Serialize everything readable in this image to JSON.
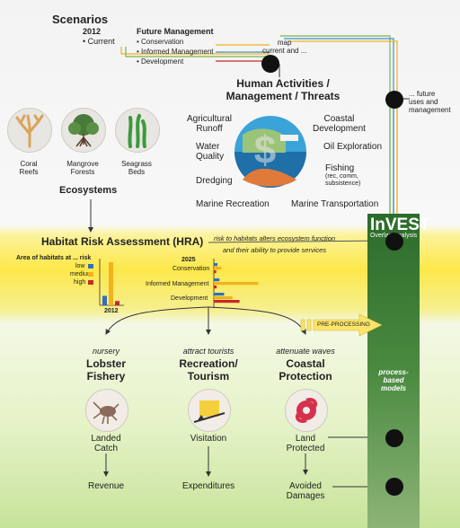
{
  "scenarios": {
    "title": "Scenarios",
    "year": "2012",
    "current": "• Current",
    "future_title": "Future Management",
    "future_items": [
      "• Conservation",
      "• Informed Management",
      "• Development"
    ]
  },
  "map_label": "map\ncurrent and ...",
  "future_uses": "... future\nuses and\nmanagement",
  "human_title": "Human Activities /\nManagement / Threats",
  "activities": {
    "ag_runoff": "Agricultural\nRunoff",
    "coastal_dev": "Coastal\nDevelopment",
    "water_quality": "Water\nQuality",
    "oil": "Oil Exploration",
    "dredging": "Dredging",
    "fishing": "Fishing",
    "fishing_sub": "(rec, comm,\nsubsistence)",
    "marine_rec": "Marine Recreation",
    "marine_transport": "Marine Transportation"
  },
  "ecosystems": {
    "title": "Ecosystems",
    "items": [
      "Coral\nReefs",
      "Mangrove\nForests",
      "Seagrass\nBeds"
    ]
  },
  "invest": {
    "title": "InVEST",
    "subtitle": "Overlap Analysis",
    "process": "process-\nbased\nmodels"
  },
  "hra": {
    "title": "Habitat Risk Assessment (HRA)",
    "arrow_text_1": "risk to habitats alters ecosystem function",
    "arrow_text_2": "and their ability to provide services",
    "area_label": "Area of habitats at ... risk",
    "legend": [
      "low",
      "medium",
      "high"
    ],
    "year_2012": "2012",
    "year_2025": "2025",
    "scenario_labels": [
      "Conservation",
      "Informed Management",
      "Development"
    ],
    "preprocessing": "PRE-PROCESSING"
  },
  "chart_data": [
    {
      "type": "bar",
      "title": "2012",
      "categories": [
        "2012"
      ],
      "series": [
        {
          "name": "low",
          "values": [
            0.22
          ]
        },
        {
          "name": "medium",
          "values": [
            1.0
          ]
        },
        {
          "name": "high",
          "values": [
            0.1
          ]
        }
      ]
    },
    {
      "type": "bar",
      "title": "2025",
      "categories": [
        "Conservation",
        "Informed Management",
        "Development"
      ],
      "series": [
        {
          "name": "low",
          "values": [
            0.08,
            0.12,
            0.22
          ]
        },
        {
          "name": "medium",
          "values": [
            0.16,
            0.95,
            0.4
          ]
        },
        {
          "name": "high",
          "values": [
            0.05,
            0.06,
            0.55
          ]
        }
      ]
    }
  ],
  "colors": {
    "low": "#2f6fba",
    "medium": "#f2b21c",
    "high": "#c8282c"
  },
  "services": [
    {
      "verb": "nursery",
      "title": "Lobster\nFishery",
      "metric": "Landed\nCatch",
      "value": "Revenue",
      "icon": "lobster-icon"
    },
    {
      "verb": "attract  tourists",
      "title": "Recreation/\nTourism",
      "metric": "Visitation",
      "value": "Expenditures",
      "icon": "island-icon"
    },
    {
      "verb": "attenuate waves",
      "title": "Coastal\nProtection",
      "metric": "Land\nProtected",
      "value": "Avoided\nDamages",
      "icon": "storm-icon"
    }
  ]
}
